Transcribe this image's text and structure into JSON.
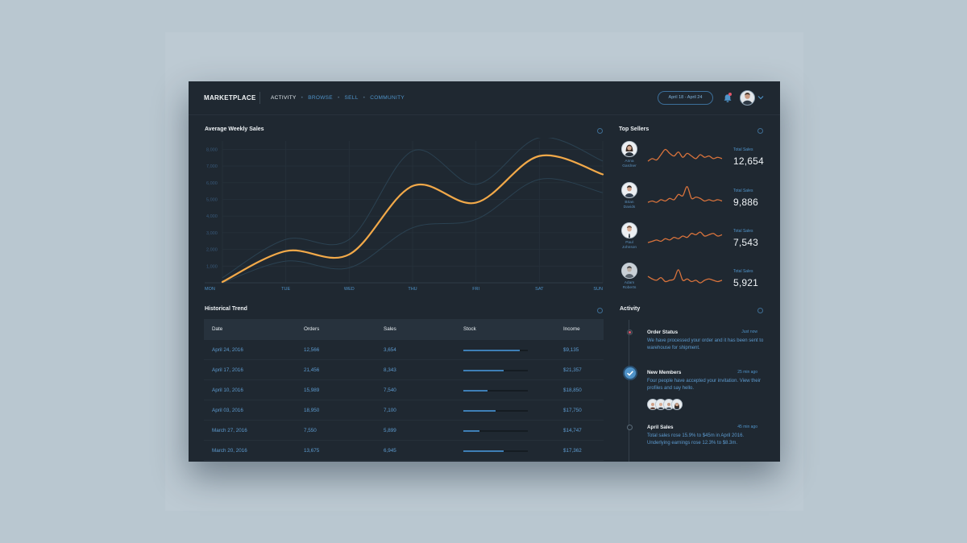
{
  "header": {
    "brand": "MARKETPLACE",
    "nav": [
      {
        "label": "ACTIVITY",
        "active": true
      },
      {
        "label": "BROWSE",
        "active": false
      },
      {
        "label": "SELL",
        "active": false
      },
      {
        "label": "COMMUNITY",
        "active": false
      }
    ],
    "date_range": "April 18 - April 24"
  },
  "weekly_sales": {
    "title": "Average Weekly Sales",
    "chart_data": {
      "type": "line",
      "categories": [
        "MON",
        "TUE",
        "WED",
        "THU",
        "FRI",
        "SAT",
        "SUN"
      ],
      "yticks": [
        1000,
        2000,
        3000,
        4000,
        5000,
        6000,
        7000,
        8000
      ],
      "ytick_labels": [
        "1,000",
        "2,000",
        "3,000",
        "4,000",
        "5,000",
        "6,000",
        "7,000",
        "8,000"
      ],
      "ylim": [
        0,
        8500
      ],
      "series": [
        {
          "values": [
            50,
            1900,
            1700,
            5800,
            4800,
            7600,
            6500
          ],
          "color": "#f2a949"
        }
      ],
      "band": {
        "upper": [
          300,
          2600,
          2600,
          7900,
          5900,
          8700,
          7300
        ],
        "lower": [
          0,
          1300,
          900,
          3300,
          3800,
          6200,
          5400
        ]
      },
      "grid": true
    }
  },
  "top_sellers": {
    "title": "Top Sellers",
    "sellers": [
      {
        "name_line1": "Anna",
        "name_line2": "Gardner",
        "label": "Total Sales",
        "value": "12,654",
        "spark": [
          3,
          5,
          4,
          8,
          12,
          9,
          7,
          10,
          6,
          9,
          7,
          5,
          8,
          6,
          7,
          5,
          6,
          5
        ]
      },
      {
        "name_line1": "Brian",
        "name_line2": "Davids",
        "label": "Total Sales",
        "value": "9,886",
        "spark": [
          3,
          4,
          3,
          5,
          4,
          6,
          5,
          9,
          8,
          15,
          6,
          7,
          6,
          4,
          5,
          4,
          5,
          4
        ]
      },
      {
        "name_line1": "Paul",
        "name_line2": "Johnson",
        "label": "Total Sales",
        "value": "7,543",
        "spark": [
          3,
          4,
          5,
          4,
          6,
          5,
          7,
          6,
          8,
          7,
          10,
          9,
          11,
          8,
          9,
          10,
          8,
          9
        ]
      },
      {
        "name_line1": "Adam",
        "name_line2": "Roberts",
        "label": "Total Sales",
        "value": "5,921",
        "spark": [
          8,
          6,
          5,
          7,
          4,
          5,
          6,
          13,
          5,
          6,
          4,
          5,
          3,
          5,
          6,
          5,
          4,
          5
        ]
      }
    ]
  },
  "historical_trend": {
    "title": "Historical Trend",
    "columns": [
      "Date",
      "Orders",
      "Sales",
      "Stock",
      "Income"
    ],
    "rows": [
      {
        "date": "April 24, 2016",
        "orders": "12,566",
        "sales": "3,654",
        "stock": 0.87,
        "income": "$9,135"
      },
      {
        "date": "April 17, 2016",
        "orders": "21,456",
        "sales": "8,343",
        "stock": 0.62,
        "income": "$21,357"
      },
      {
        "date": "April 10, 2016",
        "orders": "15,989",
        "sales": "7,540",
        "stock": 0.37,
        "income": "$18,850"
      },
      {
        "date": "April 03, 2016",
        "orders": "18,950",
        "sales": "7,100",
        "stock": 0.5,
        "income": "$17,750"
      },
      {
        "date": "March 27, 2016",
        "orders": "7,550",
        "sales": "5,899",
        "stock": 0.25,
        "income": "$14,747"
      },
      {
        "date": "March 20, 2016",
        "orders": "13,675",
        "sales": "6,945",
        "stock": 0.62,
        "income": "$17,362"
      }
    ]
  },
  "activity": {
    "title": "Activity",
    "items": [
      {
        "title": "Order Status",
        "time": "Just now",
        "text": "We have processed your order and it has been sent to warehouse for shipment."
      },
      {
        "title": "New Members",
        "time": "25 min ago",
        "text": "Four people have accepted your invitation. View their profiles and say hello."
      },
      {
        "title": "April Sales",
        "time": "45 min ago",
        "text": "Total sales rose 15.9% to $45m in April 2016. Underlying earnings rose 12.3% to $8.3m."
      }
    ]
  },
  "icons": {
    "bell": "bell-icon",
    "caret": "chevron-down-icon",
    "check": "check-icon",
    "menu_ring": "more-icon"
  },
  "colors": {
    "accent": "#4f93c9",
    "line": "#f2a949",
    "spark": "#d9733c",
    "alert": "#e0566a"
  }
}
